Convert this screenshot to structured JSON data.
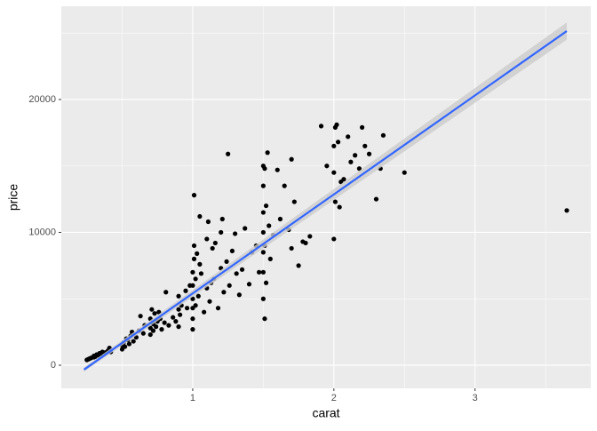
{
  "chart_data": {
    "type": "scatter",
    "x_label": "carat",
    "y_label": "price",
    "xlim": [
      0.069,
      3.82
    ],
    "ylim": [
      -1740,
      27020
    ],
    "xticks": [
      1,
      2,
      3
    ],
    "yticks": [
      0,
      10000,
      20000
    ],
    "x_minor_grid": [
      0.5,
      1.5,
      2.5,
      3.5
    ],
    "y_minor_grid": [
      5000,
      15000,
      25000
    ],
    "grid": true,
    "color": "#000000",
    "x": [
      0.25,
      0.26,
      0.27,
      0.28,
      0.3,
      0.3,
      0.31,
      0.32,
      0.33,
      0.34,
      0.35,
      0.36,
      0.38,
      0.4,
      0.41,
      0.42,
      0.5,
      0.5,
      0.51,
      0.52,
      0.53,
      0.54,
      0.55,
      0.56,
      0.57,
      0.58,
      0.6,
      0.62,
      0.63,
      0.65,
      0.66,
      0.7,
      0.7,
      0.7,
      0.71,
      0.72,
      0.72,
      0.73,
      0.74,
      0.75,
      0.76,
      0.77,
      0.78,
      0.8,
      0.81,
      0.83,
      0.86,
      0.88,
      0.9,
      0.9,
      0.9,
      0.91,
      0.92,
      0.95,
      0.96,
      0.98,
      1.0,
      1.0,
      1.0,
      1.0,
      1.0,
      1.0,
      1.01,
      1.01,
      1.01,
      1.02,
      1.02,
      1.03,
      1.04,
      1.05,
      1.05,
      1.06,
      1.08,
      1.1,
      1.1,
      1.11,
      1.12,
      1.13,
      1.14,
      1.15,
      1.16,
      1.18,
      1.2,
      1.2,
      1.21,
      1.22,
      1.24,
      1.25,
      1.26,
      1.28,
      1.3,
      1.31,
      1.33,
      1.35,
      1.37,
      1.4,
      1.42,
      1.45,
      1.47,
      1.5,
      1.5,
      1.5,
      1.5,
      1.5,
      1.5,
      1.5,
      1.51,
      1.51,
      1.51,
      1.52,
      1.52,
      1.53,
      1.54,
      1.55,
      1.57,
      1.6,
      1.62,
      1.65,
      1.68,
      1.7,
      1.7,
      1.72,
      1.75,
      1.78,
      1.8,
      1.83,
      1.91,
      1.95,
      2.0,
      2.0,
      2.0,
      2.01,
      2.01,
      2.02,
      2.03,
      2.04,
      2.05,
      2.07,
      2.1,
      2.12,
      2.15,
      2.18,
      2.2,
      2.22,
      2.25,
      2.3,
      2.33,
      2.35,
      2.5,
      3.65
    ],
    "values": [
      400,
      450,
      500,
      550,
      600,
      700,
      650,
      800,
      750,
      900,
      850,
      1000,
      950,
      1100,
      1300,
      1000,
      1200,
      1500,
      1700,
      1400,
      2000,
      1900,
      1600,
      2200,
      2500,
      1800,
      2100,
      2600,
      3700,
      2400,
      3000,
      2300,
      2800,
      3500,
      4200,
      2600,
      3100,
      3900,
      2900,
      3300,
      4000,
      3500,
      2700,
      3200,
      5500,
      3000,
      3600,
      3300,
      2900,
      4200,
      5200,
      3800,
      4500,
      5600,
      4300,
      6000,
      2700,
      3500,
      4300,
      5000,
      6000,
      7000,
      8000,
      9000,
      12800,
      4500,
      6500,
      8400,
      5200,
      11200,
      7600,
      6900,
      4000,
      9500,
      5800,
      10800,
      4800,
      6200,
      8800,
      6500,
      9200,
      4300,
      7300,
      10000,
      11000,
      5500,
      7800,
      15900,
      6000,
      8600,
      9900,
      6900,
      5300,
      7200,
      10300,
      6100,
      8500,
      9000,
      7000,
      5000,
      7000,
      8500,
      10000,
      11500,
      13500,
      15000,
      3500,
      9000,
      14800,
      6200,
      12000,
      16000,
      10500,
      8000,
      9800,
      14700,
      11000,
      13500,
      10200,
      8800,
      15500,
      12300,
      7500,
      9300,
      9200,
      9700,
      18000,
      15000,
      9500,
      14500,
      16500,
      12300,
      17900,
      18100,
      16800,
      11900,
      13800,
      14000,
      17200,
      15300,
      15800,
      14800,
      17900,
      16500,
      15900,
      12500,
      14800,
      17300,
      14500,
      11650
    ],
    "fit": {
      "x": [
        0.23,
        3.65
      ],
      "y": [
        -330,
        25150
      ],
      "lower": [
        -480,
        24500
      ],
      "upper": [
        -180,
        25800
      ],
      "color": "#3366ff",
      "band_color": "#cccccc"
    }
  }
}
